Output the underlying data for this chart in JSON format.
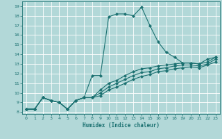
{
  "title": "",
  "xlabel": "Humidex (Indice chaleur)",
  "bg_color": "#b2d8d8",
  "grid_color": "#ffffff",
  "line_color": "#1a7070",
  "xlim": [
    -0.5,
    23.5
  ],
  "ylim": [
    7.8,
    19.5
  ],
  "xticks": [
    0,
    1,
    2,
    3,
    4,
    5,
    6,
    7,
    8,
    9,
    10,
    11,
    12,
    13,
    14,
    15,
    16,
    17,
    18,
    19,
    20,
    21,
    22,
    23
  ],
  "yticks": [
    8,
    9,
    10,
    11,
    12,
    13,
    14,
    15,
    16,
    17,
    18,
    19
  ],
  "line1_x": [
    0,
    1,
    2,
    3,
    4,
    5,
    6,
    7,
    8,
    9,
    10,
    11,
    12,
    13,
    14,
    15,
    16,
    17,
    18,
    19,
    20,
    21,
    22,
    23
  ],
  "line1_y": [
    8.3,
    8.3,
    9.5,
    9.2,
    9.0,
    8.3,
    9.2,
    9.5,
    11.8,
    11.8,
    17.9,
    18.2,
    18.2,
    18.0,
    18.9,
    17.0,
    15.3,
    14.2,
    13.7,
    13.1,
    13.1,
    13.0,
    13.5,
    13.7
  ],
  "line2_x": [
    0,
    1,
    2,
    3,
    4,
    5,
    6,
    7,
    8,
    9,
    10,
    11,
    12,
    13,
    14,
    15,
    16,
    17,
    18,
    19,
    20,
    21,
    22,
    23
  ],
  "line2_y": [
    8.3,
    8.3,
    9.5,
    9.2,
    9.0,
    8.3,
    9.2,
    9.5,
    9.5,
    10.3,
    11.0,
    11.3,
    11.8,
    12.2,
    12.5,
    12.6,
    12.8,
    12.9,
    13.0,
    13.1,
    13.1,
    13.0,
    13.2,
    13.7
  ],
  "line3_x": [
    0,
    1,
    2,
    3,
    4,
    5,
    6,
    7,
    8,
    9,
    10,
    11,
    12,
    13,
    14,
    15,
    16,
    17,
    18,
    19,
    20,
    21,
    22,
    23
  ],
  "line3_y": [
    8.3,
    8.3,
    9.5,
    9.2,
    9.0,
    8.3,
    9.2,
    9.5,
    9.5,
    10.0,
    10.6,
    11.0,
    11.4,
    11.8,
    12.1,
    12.2,
    12.5,
    12.6,
    12.8,
    12.9,
    12.9,
    12.8,
    13.0,
    13.5
  ],
  "line4_x": [
    0,
    1,
    2,
    3,
    4,
    5,
    6,
    7,
    8,
    9,
    10,
    11,
    12,
    13,
    14,
    15,
    16,
    17,
    18,
    19,
    20,
    21,
    22,
    23
  ],
  "line4_y": [
    8.3,
    8.3,
    9.5,
    9.2,
    9.0,
    8.3,
    9.2,
    9.5,
    9.5,
    9.7,
    10.3,
    10.6,
    11.0,
    11.4,
    11.7,
    11.9,
    12.2,
    12.3,
    12.5,
    12.6,
    12.7,
    12.6,
    12.9,
    13.2
  ]
}
